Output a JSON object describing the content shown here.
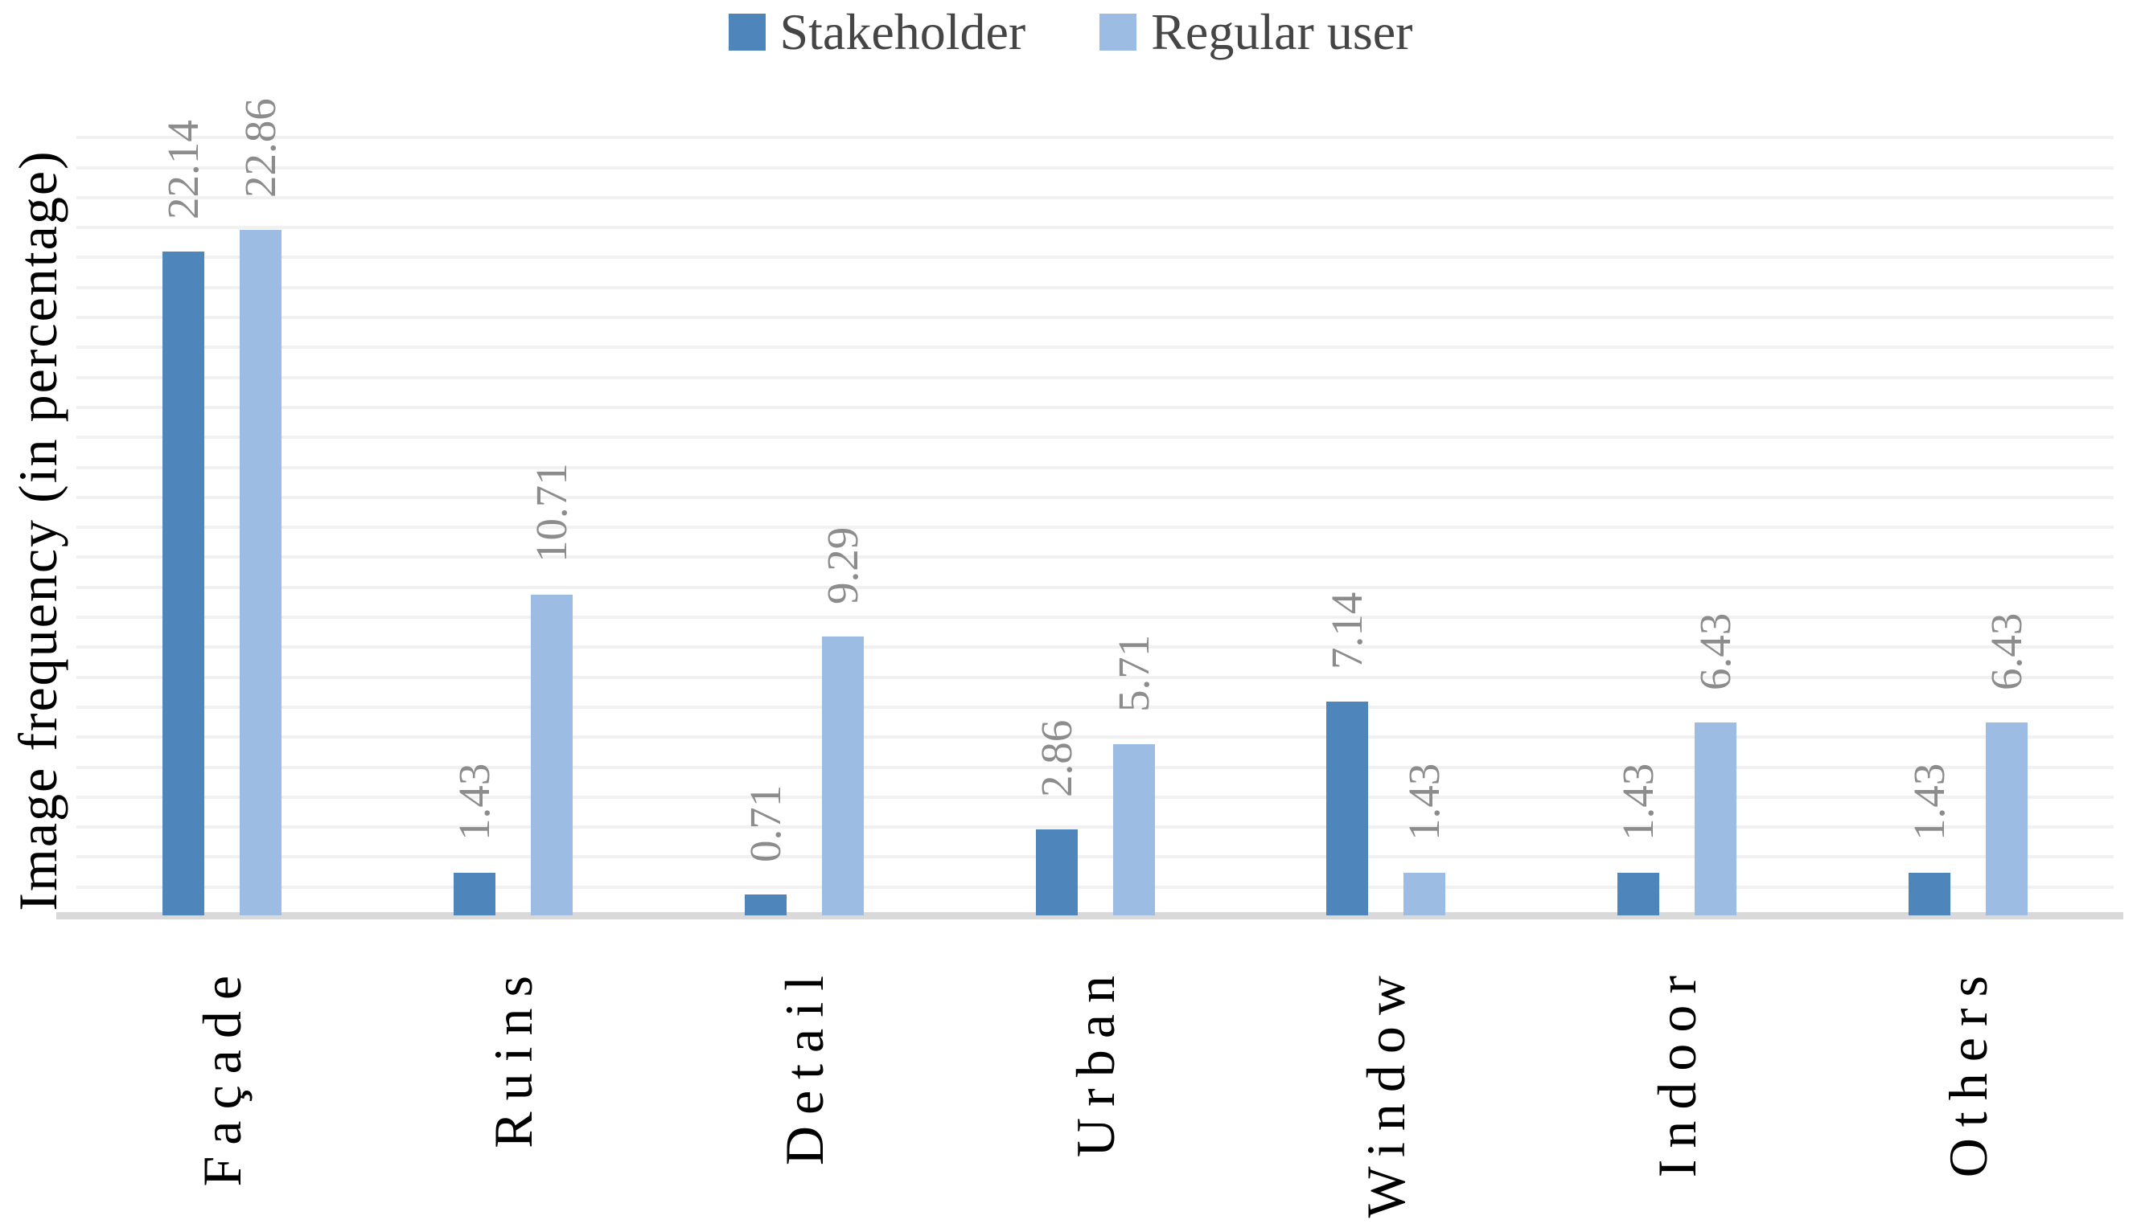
{
  "legend": {
    "items": [
      {
        "label": "Stakeholder",
        "color": "#4e86bb"
      },
      {
        "label": "Regular user",
        "color": "#9cbce3"
      }
    ]
  },
  "y_axis_title": "Image frequency (in percentage)",
  "chart_data": {
    "type": "bar",
    "title": "",
    "xlabel": "",
    "ylabel": "Image frequency (in percentage)",
    "categories": [
      "Façade",
      "Ruins",
      "Detail",
      "Urban",
      "Window",
      "Indoor",
      "Others"
    ],
    "series": [
      {
        "name": "Stakeholder",
        "color": "#4e86bb",
        "values": [
          22.14,
          1.43,
          0.71,
          2.86,
          7.14,
          1.43,
          1.43
        ]
      },
      {
        "name": "Regular user",
        "color": "#9cbce3",
        "values": [
          22.86,
          10.71,
          9.29,
          5.71,
          1.43,
          6.43,
          6.43
        ]
      }
    ],
    "data_labels": [
      "22.14",
      "22.86",
      "1.43",
      "10.71",
      "0.71",
      "9.29",
      "2.86",
      "5.71",
      "7.14",
      "1.43",
      "1.43",
      "6.43",
      "1.43",
      "6.43"
    ],
    "ylim": [
      0,
      26
    ],
    "grid": {
      "visible": true,
      "step": 1,
      "color": "#f1f1f1"
    },
    "axis_color": "#d9d9d9",
    "value_label_color": "#8c8c8c",
    "legend_position": "top-center",
    "bar_orientation": "vertical",
    "label_rotation_degrees": 90
  }
}
